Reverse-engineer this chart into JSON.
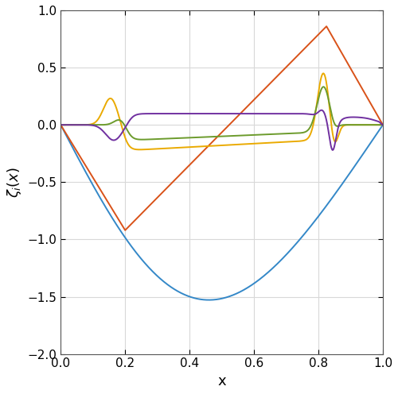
{
  "xlabel": "x",
  "ylabel": "$\\zeta_i(x)$",
  "xlim": [
    0,
    1
  ],
  "ylim": [
    -2,
    1
  ],
  "yticks": [
    -2,
    -1.5,
    -1,
    -0.5,
    0,
    0.5,
    1
  ],
  "xticks": [
    0,
    0.2,
    0.4,
    0.6,
    0.8,
    1.0
  ],
  "colors": {
    "blue": "#3488c8",
    "red": "#d95219",
    "yellow": "#eaaa00",
    "green": "#6c9b2c",
    "purple": "#7030a0"
  },
  "line_width": 1.4,
  "figsize": [
    5.0,
    4.96
  ],
  "dpi": 100,
  "bg_color": "#ffffff",
  "grid_color": "#d8d8d8"
}
